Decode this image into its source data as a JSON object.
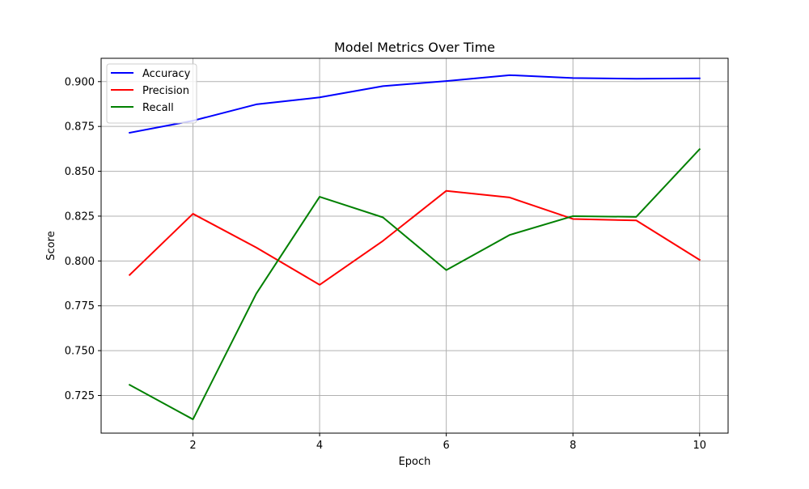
{
  "chart_data": {
    "type": "line",
    "title": "Model Metrics Over Time",
    "xlabel": "Epoch",
    "ylabel": "Score",
    "x": [
      1,
      2,
      3,
      4,
      5,
      6,
      7,
      8,
      9,
      10
    ],
    "xlim": [
      0.55,
      10.45
    ],
    "ylim": [
      0.704,
      0.913
    ],
    "xticks": [
      2,
      4,
      6,
      8,
      10
    ],
    "xtick_labels": [
      "2",
      "4",
      "6",
      "8",
      "10"
    ],
    "yticks": [
      0.725,
      0.75,
      0.775,
      0.8,
      0.825,
      0.85,
      0.875,
      0.9
    ],
    "ytick_labels": [
      "0.725",
      "0.750",
      "0.775",
      "0.800",
      "0.825",
      "0.850",
      "0.875",
      "0.900"
    ],
    "grid": true,
    "legend_position": "top-left",
    "series": [
      {
        "name": "Accuracy",
        "color": "#0000ff",
        "values": [
          0.8715,
          0.8782,
          0.8873,
          0.8912,
          0.8975,
          0.9003,
          0.9036,
          0.902,
          0.9016,
          0.9018
        ]
      },
      {
        "name": "Precision",
        "color": "#ff0000",
        "values": [
          0.7922,
          0.8263,
          0.8075,
          0.7867,
          0.8112,
          0.8391,
          0.8354,
          0.8234,
          0.8226,
          0.8006
        ]
      },
      {
        "name": "Recall",
        "color": "#008000",
        "values": [
          0.7309,
          0.7117,
          0.7818,
          0.8358,
          0.8243,
          0.7949,
          0.8145,
          0.825,
          0.8246,
          0.8623
        ]
      }
    ]
  }
}
